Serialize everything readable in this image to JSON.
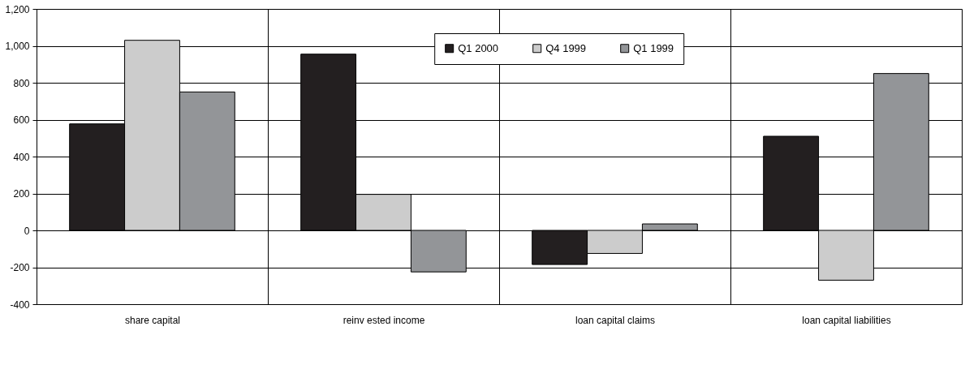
{
  "chart_data": {
    "type": "bar",
    "categories": [
      "share capital",
      "reinv ested income",
      "loan capital claims",
      "loan capital liabilities"
    ],
    "series": [
      {
        "name": "Q1 2000",
        "color": "#231f20",
        "values": [
          577,
          955,
          -185,
          510
        ]
      },
      {
        "name": "Q4 1999",
        "color": "#cccccc",
        "values": [
          1030,
          195,
          -125,
          -270
        ]
      },
      {
        "name": "Q1 1999",
        "color": "#939598",
        "values": [
          750,
          -225,
          35,
          850
        ]
      }
    ],
    "ylim": [
      -400,
      1200
    ],
    "yticks": [
      -400,
      -200,
      0,
      200,
      400,
      600,
      800,
      {
        "value": 1000,
        "label": "1,000"
      },
      {
        "value": 1200,
        "label": "1,200"
      }
    ],
    "grid": true,
    "legend": "top"
  }
}
